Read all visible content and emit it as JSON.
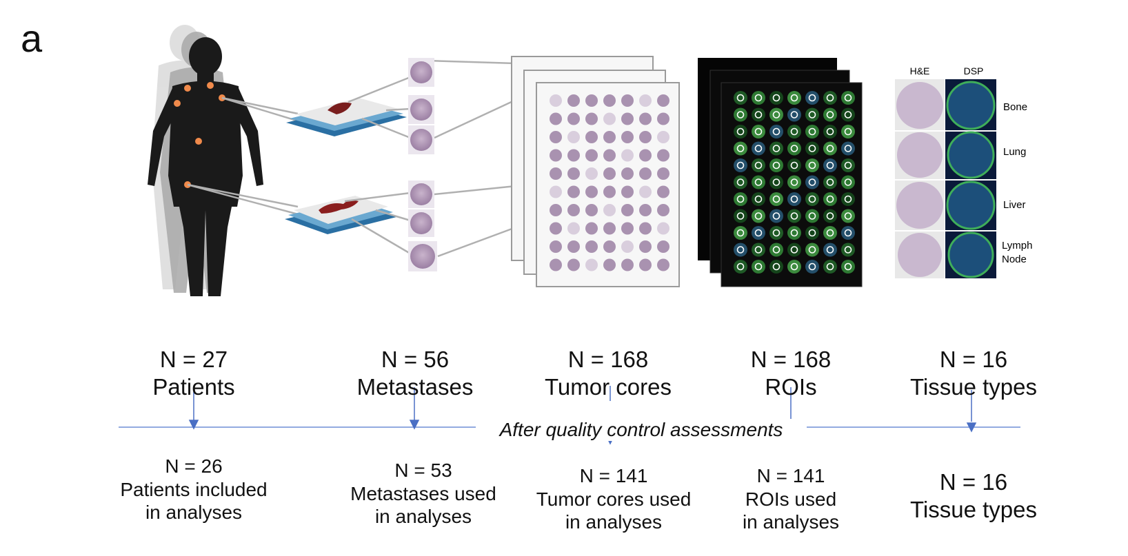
{
  "panel_letter": "a",
  "tma_legend": {
    "col_he": "H&E",
    "col_dsp": "DSP",
    "rows": [
      "Bone",
      "Lung",
      "Liver",
      "Lymph Node"
    ]
  },
  "qc_label": "After quality control assessments",
  "columns": [
    {
      "top_n": "N = 27",
      "top_label": "Patients",
      "bottom_n": "N = 26",
      "bottom_line1": "Patients included",
      "bottom_line2": "in analyses"
    },
    {
      "top_n": "N = 56",
      "top_label": "Metastases",
      "bottom_n": "N = 53",
      "bottom_line1": "Metastases used",
      "bottom_line2": "in analyses"
    },
    {
      "top_n": "N = 168",
      "top_label": "Tumor cores",
      "bottom_n": "N = 141",
      "bottom_line1": "Tumor cores used",
      "bottom_line2": "in analyses"
    },
    {
      "top_n": "N = 168",
      "top_label": "ROIs",
      "bottom_n": "N = 141",
      "bottom_line1": "ROIs used",
      "bottom_line2": "in analyses"
    },
    {
      "top_n": "N = 16",
      "top_label": "Tissue types",
      "bottom_n": "N = 16",
      "bottom_line1": "Tissue types",
      "bottom_line2": ""
    }
  ],
  "colors": {
    "arrow": "#4a6fc4",
    "line": "#5b7bd0",
    "tissue": "#b39abd",
    "tumor_dot": "#f08a4b"
  }
}
